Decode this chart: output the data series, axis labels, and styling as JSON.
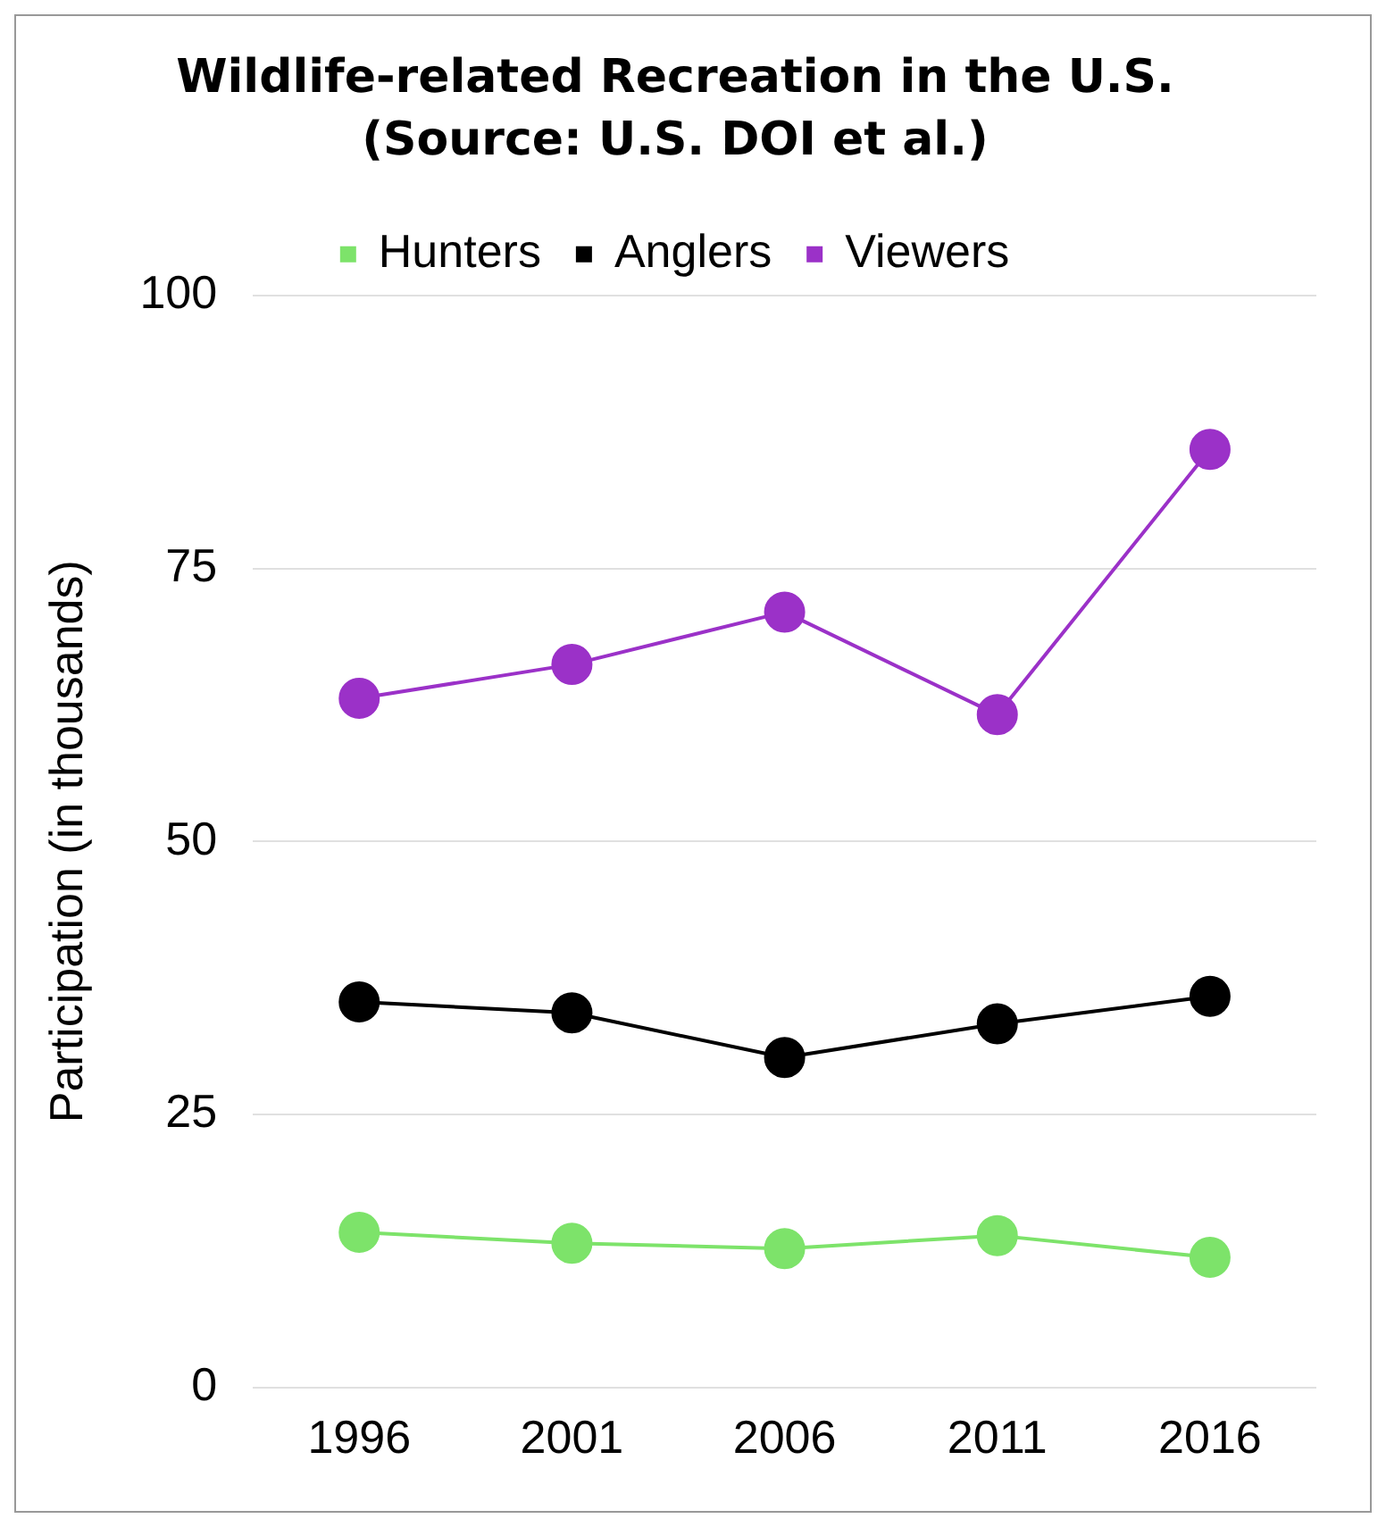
{
  "chart_data": {
    "type": "line",
    "title": "Wildlife-related Recreation in the U.S.",
    "subtitle": "(Source: U.S. DOI et al.)",
    "ylabel": "Participation (in thousands)",
    "categories": [
      "1996",
      "2001",
      "2006",
      "2011",
      "2016"
    ],
    "series": [
      {
        "name": "Hunters",
        "color": "#7de36a",
        "values": [
          14.2,
          13.2,
          12.7,
          13.9,
          11.9
        ]
      },
      {
        "name": "Anglers",
        "color": "#000000",
        "values": [
          35.3,
          34.3,
          30.2,
          33.3,
          35.8
        ]
      },
      {
        "name": "Viewers",
        "color": "#9b31c8",
        "values": [
          63.1,
          66.2,
          71,
          61.6,
          85.9
        ]
      }
    ],
    "ylim": [
      0,
      100
    ],
    "yticks": [
      0,
      25,
      50,
      75,
      100
    ],
    "grid": "y",
    "legend": "top",
    "marker": "circle",
    "line_style": "solid"
  }
}
